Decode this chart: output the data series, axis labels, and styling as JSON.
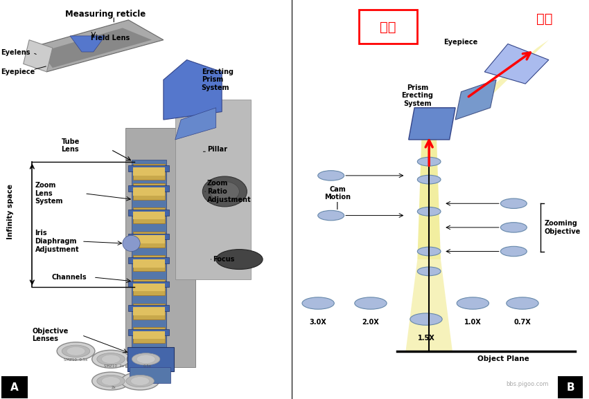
{
  "fig_width": 8.5,
  "fig_height": 5.77,
  "bg_color": "#ffffff",
  "border_color": "#000000",
  "panel_a_label": "A",
  "panel_b_label": "B",
  "panel_label_bg": "#000000",
  "panel_label_color": "#ffffff",
  "title_text": "Measuring reticle",
  "infinity_space_text": "Infinity space",
  "camera_text": "像機",
  "eye_text": "眼睛",
  "camera_box_color": "#ff0000",
  "arrow_color": "#ff0000",
  "watermark": "bbs.pigoo.com"
}
